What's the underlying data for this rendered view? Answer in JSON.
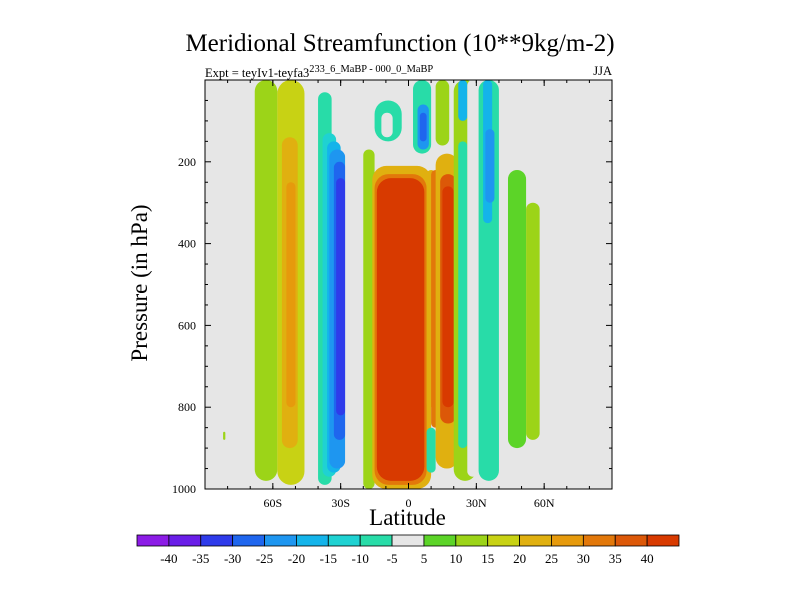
{
  "chart_data": {
    "type": "contour",
    "title": "Meridional Streamfunction (10**9kg/m-2)",
    "subtitle": "Expt = teyIv1-teyfa3233_6_MaBP - 000_0_MaBP",
    "subtitle_parts": {
      "prefix": "Expt = teyIv1-teyfa3",
      "superscript": "233_6_MaBP - 000_0_MaBP"
    },
    "season": "JJA",
    "xlabel": "Latitude",
    "ylabel": "Pressure (in hPa)",
    "xlim": [
      -90,
      90
    ],
    "ylim": [
      1000,
      0
    ],
    "x_ticks": [
      {
        "value": -60,
        "label": "60S"
      },
      {
        "value": -30,
        "label": "30S"
      },
      {
        "value": 0,
        "label": "0"
      },
      {
        "value": 30,
        "label": "30N"
      },
      {
        "value": 60,
        "label": "60N"
      }
    ],
    "y_ticks": [
      {
        "value": 200,
        "label": "200"
      },
      {
        "value": 400,
        "label": "400"
      },
      {
        "value": 600,
        "label": "600"
      },
      {
        "value": 800,
        "label": "800"
      },
      {
        "value": 1000,
        "label": "1000"
      }
    ],
    "colorbar": {
      "levels": [
        "-40",
        "-35",
        "-30",
        "-25",
        "-20",
        "-15",
        "-10",
        "-5",
        "5",
        "10",
        "15",
        "20",
        "25",
        "30",
        "35",
        "40"
      ],
      "colors": [
        "#8c1ce6",
        "#6a1ee8",
        "#2e3bea",
        "#1f66ee",
        "#1e96f0",
        "#14b4ea",
        "#1fd2d2",
        "#28dca8",
        "#e6e6e6",
        "#5cd428",
        "#9cd418",
        "#c8d214",
        "#e0b010",
        "#e69a0c",
        "#e2780a",
        "#dc5808",
        "#d83a00"
      ]
    },
    "cells": [
      {
        "lat0": -68,
        "lat1": -58,
        "p0": 0,
        "p1": 980,
        "v": 10
      },
      {
        "lat0": -58,
        "lat1": -46,
        "p0": 0,
        "p1": 990,
        "v": 15
      },
      {
        "lat0": -56,
        "lat1": -49,
        "p0": 140,
        "p1": 900,
        "v": 20
      },
      {
        "lat0": -54,
        "lat1": -50,
        "p0": 250,
        "p1": 800,
        "v": 25
      },
      {
        "lat0": -46,
        "lat1": -40,
        "p0": 0,
        "p1": 990,
        "v": -5
      },
      {
        "lat0": -40,
        "lat1": -34,
        "p0": 30,
        "p1": 990,
        "v": -10
      },
      {
        "lat0": -38,
        "lat1": -32,
        "p0": 130,
        "p1": 970,
        "v": -15
      },
      {
        "lat0": -36,
        "lat1": -30,
        "p0": 150,
        "p1": 960,
        "v": -20
      },
      {
        "lat0": -35,
        "lat1": -28,
        "p0": 170,
        "p1": 950,
        "v": -25
      },
      {
        "lat0": -33,
        "lat1": -28,
        "p0": 200,
        "p1": 880,
        "v": -30
      },
      {
        "lat0": -32,
        "lat1": -28,
        "p0": 240,
        "p1": 820,
        "v": -35
      },
      {
        "lat0": -28,
        "lat1": -20,
        "p0": 150,
        "p1": 1000,
        "v": -5
      },
      {
        "lat0": -20,
        "lat1": -15,
        "p0": 170,
        "p1": 1000,
        "v": 10
      },
      {
        "lat0": -16,
        "lat1": 10,
        "p0": 210,
        "p1": 1000,
        "v": 20
      },
      {
        "lat0": -15,
        "lat1": 8,
        "p0": 230,
        "p1": 990,
        "v": 30
      },
      {
        "lat0": -14,
        "lat1": 7,
        "p0": 240,
        "p1": 980,
        "v": 40
      },
      {
        "lat0": 8,
        "lat1": 12,
        "p0": 850,
        "p1": 960,
        "v": -10
      },
      {
        "lat0": 8,
        "lat1": 12,
        "p0": 220,
        "p1": 800,
        "v": 20
      },
      {
        "lat0": 10,
        "lat1": 14,
        "p0": 220,
        "p1": 850,
        "v": 30
      },
      {
        "lat0": 12,
        "lat1": 22,
        "p0": 180,
        "p1": 950,
        "v": 20
      },
      {
        "lat0": 14,
        "lat1": 21,
        "p0": 230,
        "p1": 840,
        "v": 35
      },
      {
        "lat0": 15,
        "lat1": 20,
        "p0": 260,
        "p1": 800,
        "v": 40
      },
      {
        "lat0": 20,
        "lat1": 30,
        "p0": 0,
        "p1": 980,
        "v": 10
      },
      {
        "lat0": 22,
        "lat1": 26,
        "p0": 150,
        "p1": 900,
        "v": -10
      },
      {
        "lat0": 22,
        "lat1": 26,
        "p0": 0,
        "p1": 100,
        "v": -20
      },
      {
        "lat0": 26,
        "lat1": 31,
        "p0": 0,
        "p1": 970,
        "v": -5
      },
      {
        "lat0": 31,
        "lat1": 40,
        "p0": 0,
        "p1": 980,
        "v": -10
      },
      {
        "lat0": 33,
        "lat1": 37,
        "p0": 0,
        "p1": 350,
        "v": -20
      },
      {
        "lat0": 34,
        "lat1": 38,
        "p0": 120,
        "p1": 300,
        "v": -25
      },
      {
        "lat0": 40,
        "lat1": 44,
        "p0": 0,
        "p1": 820,
        "v": -5
      },
      {
        "lat0": 44,
        "lat1": 52,
        "p0": 220,
        "p1": 900,
        "v": 5
      },
      {
        "lat0": 52,
        "lat1": 58,
        "p0": 300,
        "p1": 880,
        "v": 10
      },
      {
        "lat0": -15,
        "lat1": -3,
        "p0": 50,
        "p1": 150,
        "v": -10
      },
      {
        "lat0": 2,
        "lat1": 10,
        "p0": 0,
        "p1": 180,
        "v": -10
      },
      {
        "lat0": 4,
        "lat1": 9,
        "p0": 60,
        "p1": 170,
        "v": -25
      },
      {
        "lat0": 5,
        "lat1": 8,
        "p0": 80,
        "p1": 150,
        "v": -30
      },
      {
        "lat0": -12,
        "lat1": -7,
        "p0": 80,
        "p1": 140,
        "v": -5
      },
      {
        "lat0": 12,
        "lat1": 18,
        "p0": 0,
        "p1": 160,
        "v": 10
      },
      {
        "lat0": -82,
        "lat1": -81,
        "p0": 860,
        "p1": 880,
        "v": 10
      }
    ]
  }
}
